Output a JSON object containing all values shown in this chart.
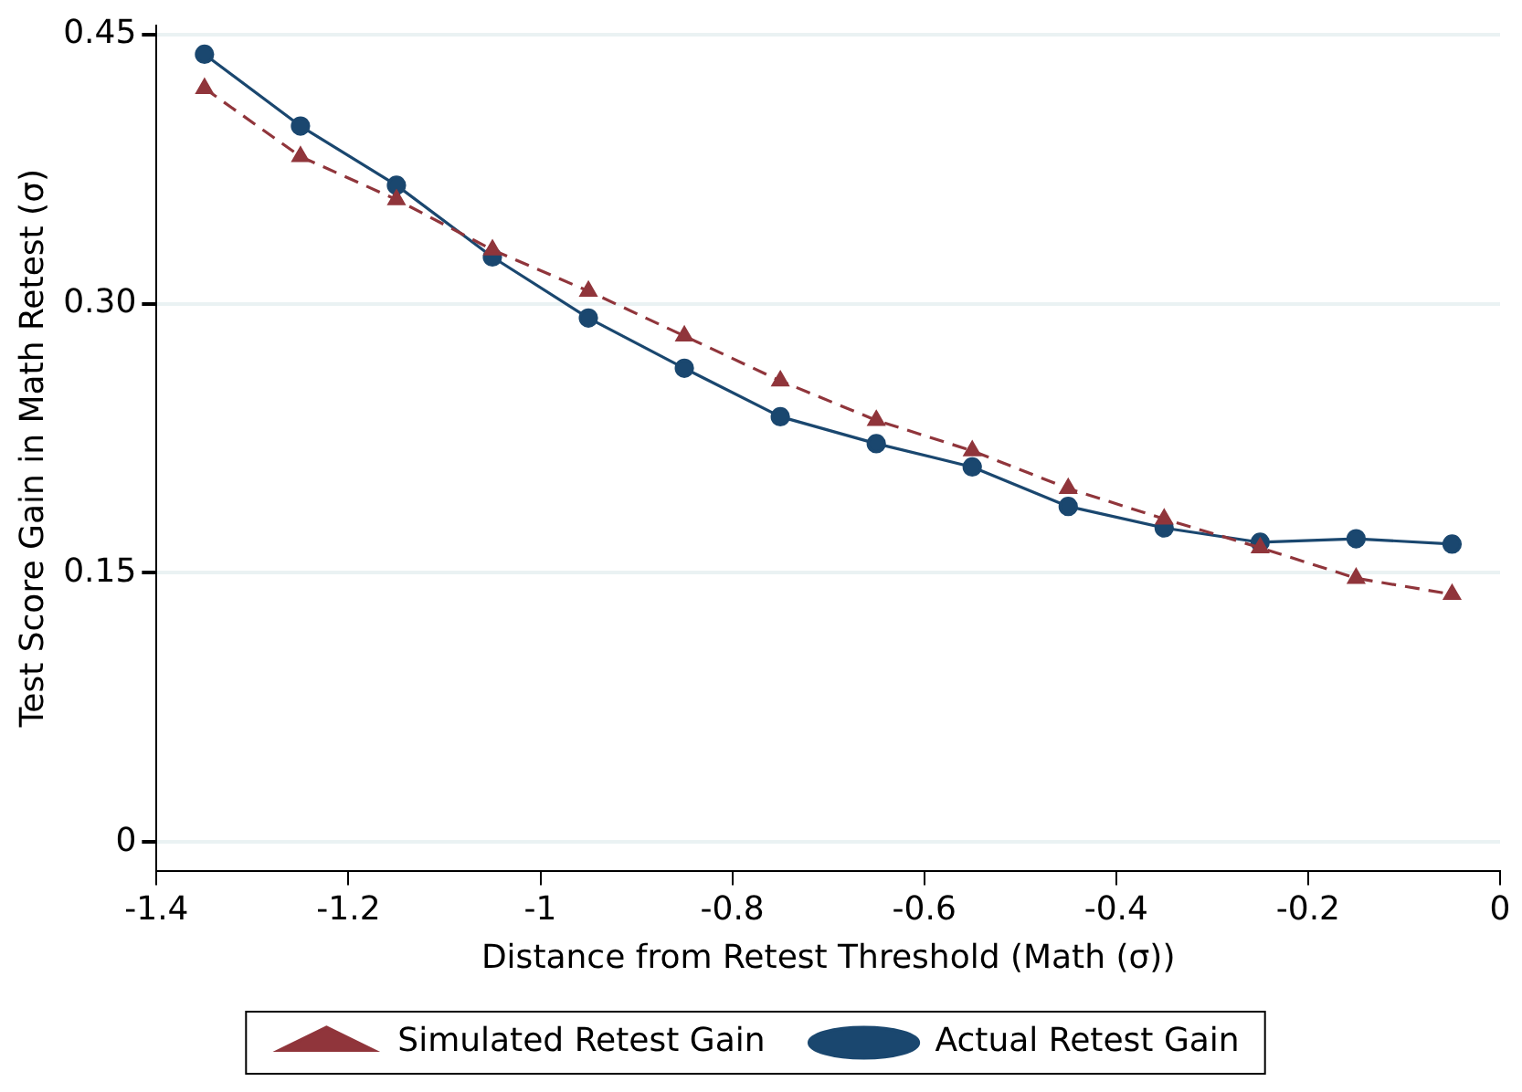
{
  "chart_data": {
    "type": "line",
    "xlabel": "Distance from Retest Threshold (Math (σ))",
    "ylabel": "Test Score Gain in Math Retest (σ)",
    "x": [
      -1.35,
      -1.25,
      -1.15,
      -1.05,
      -0.95,
      -0.85,
      -0.75,
      -0.65,
      -0.55,
      -0.45,
      -0.35,
      -0.25,
      -0.15,
      -0.05
    ],
    "series": [
      {
        "name": "Actual Retest Gain",
        "color": "#1a476f",
        "marker": "circle",
        "line_style": "solid",
        "values": [
          0.439,
          0.399,
          0.366,
          0.326,
          0.292,
          0.264,
          0.237,
          0.222,
          0.209,
          0.187,
          0.175,
          0.167,
          0.169,
          0.166
        ]
      },
      {
        "name": "Simulated Retest Gain",
        "color": "#90353b",
        "marker": "triangle",
        "line_style": "dashed",
        "values": [
          0.42,
          0.382,
          0.358,
          0.33,
          0.307,
          0.282,
          0.257,
          0.235,
          0.218,
          0.197,
          0.18,
          0.164,
          0.147,
          0.138
        ]
      }
    ],
    "xlim": [
      -1.4,
      0
    ],
    "xticks": [
      -1.4,
      -1.2,
      -1,
      -0.8,
      -0.6,
      -0.4,
      -0.2,
      0
    ],
    "ylim": [
      -0.016,
      0.455
    ],
    "yticks": [
      0,
      0.15,
      {
        "value": 0.3,
        "label": "0.30"
      },
      0.45
    ],
    "grid": "y",
    "legend": "bottom"
  }
}
